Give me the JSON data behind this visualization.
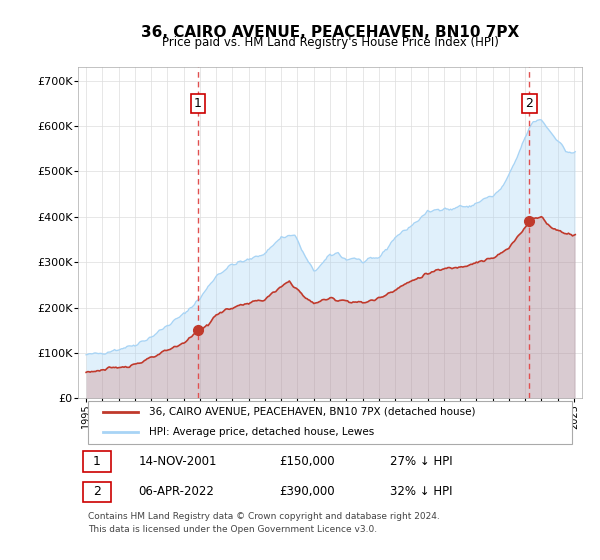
{
  "title": "36, CAIRO AVENUE, PEACEHAVEN, BN10 7PX",
  "subtitle": "Price paid vs. HM Land Registry's House Price Index (HPI)",
  "legend_line1": "36, CAIRO AVENUE, PEACEHAVEN, BN10 7PX (detached house)",
  "legend_line2": "HPI: Average price, detached house, Lewes",
  "annotation1_label": "1",
  "annotation1_date": "14-NOV-2001",
  "annotation1_price": "£150,000",
  "annotation1_hpi": "27% ↓ HPI",
  "annotation2_label": "2",
  "annotation2_date": "06-APR-2022",
  "annotation2_price": "£390,000",
  "annotation2_hpi": "32% ↓ HPI",
  "footer1": "Contains HM Land Registry data © Crown copyright and database right 2024.",
  "footer2": "This data is licensed under the Open Government Licence v3.0.",
  "sale1_year": 2001.87,
  "sale1_price": 150000,
  "sale2_year": 2022.27,
  "sale2_price": 390000,
  "hpi_color": "#a8d4f5",
  "price_color": "#c0392b",
  "vline_color": "#e05050",
  "ylim_max": 730000,
  "xlim_min": 1994.5,
  "xlim_max": 2025.5
}
